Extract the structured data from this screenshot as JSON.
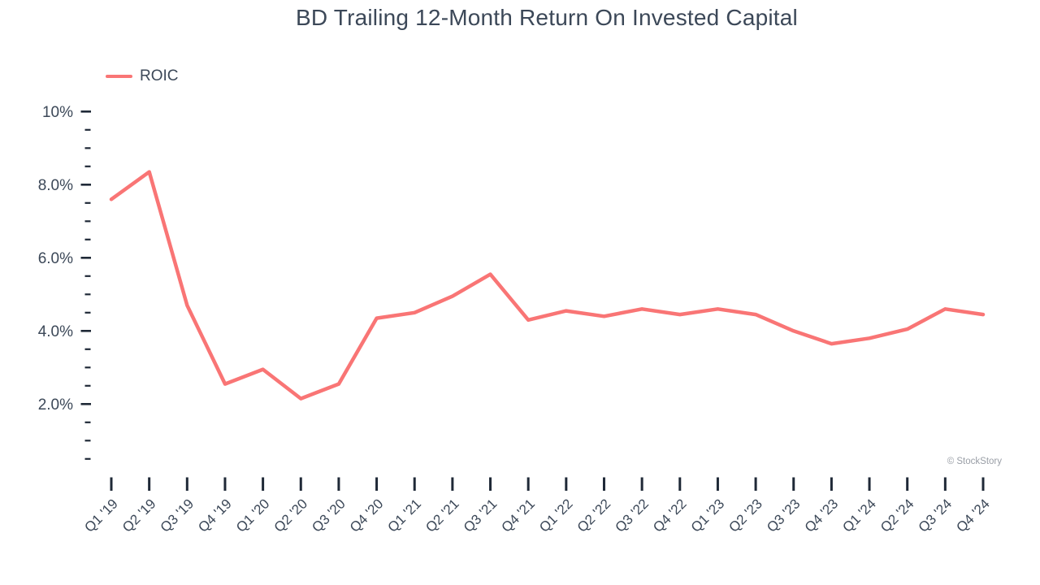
{
  "title": "BD Trailing 12-Month Return On Invested Capital",
  "watermark": "© StockStory",
  "legend": {
    "label": "ROIC"
  },
  "colors": {
    "line": "#f97575",
    "text": "#3c4858",
    "tick": "#1f2937",
    "watermark": "#999ea6"
  },
  "chart_data": {
    "type": "line",
    "title": "BD Trailing 12-Month Return On Invested Capital",
    "categories": [
      "Q1 '19",
      "Q2 '19",
      "Q3 '19",
      "Q4 '19",
      "Q1 '20",
      "Q2 '20",
      "Q3 '20",
      "Q4 '20",
      "Q1 '21",
      "Q2 '21",
      "Q3 '21",
      "Q4 '21",
      "Q1 '22",
      "Q2 '22",
      "Q3 '22",
      "Q4 '22",
      "Q1 '23",
      "Q2 '23",
      "Q3 '23",
      "Q4 '23",
      "Q1 '24",
      "Q2 '24",
      "Q3 '24",
      "Q4 '24"
    ],
    "series": [
      {
        "name": "ROIC",
        "color": "#f97575",
        "values": [
          7.6,
          8.35,
          4.7,
          2.55,
          2.95,
          2.15,
          2.55,
          4.35,
          4.5,
          4.95,
          5.55,
          4.3,
          4.55,
          4.4,
          4.6,
          4.45,
          4.6,
          4.45,
          4.0,
          3.65,
          3.8,
          4.05,
          4.6,
          4.45
        ]
      }
    ],
    "xlabel": "",
    "ylabel": "",
    "y_axis": {
      "unit": "%",
      "major_tick_values": [
        10,
        8,
        6,
        4,
        2
      ],
      "major_tick_labels": [
        "10%",
        "8.0%",
        "6.0%",
        "4.0%",
        "2.0%"
      ],
      "minor_tick_step": 0.5,
      "top": 10,
      "bottom": 0.5
    },
    "grid": false,
    "legend_position": "top-left"
  }
}
